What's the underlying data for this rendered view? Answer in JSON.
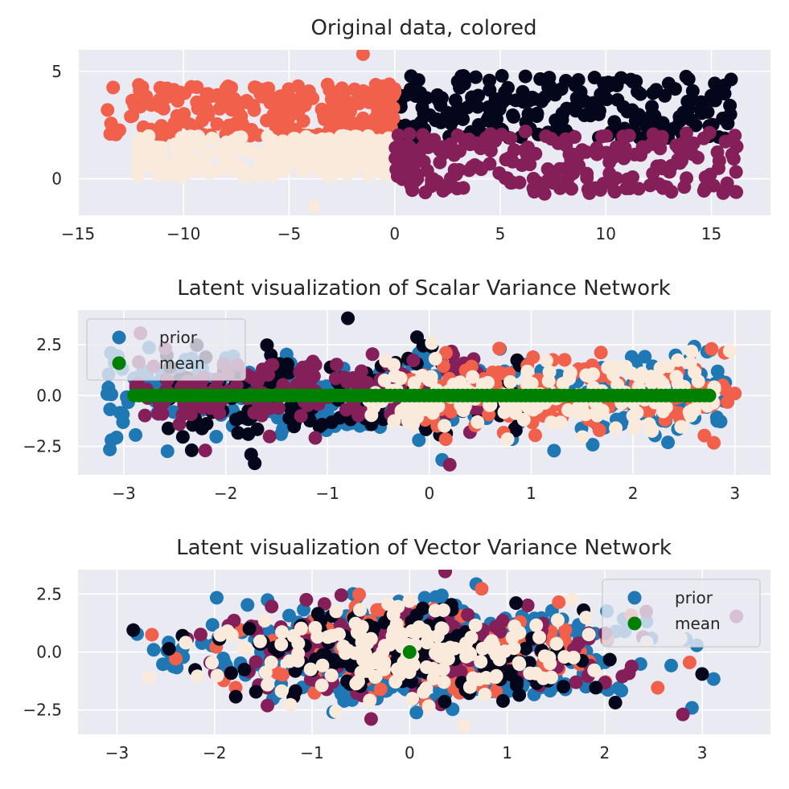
{
  "colors": {
    "black_cluster": "#04071c",
    "orange_cluster": "#f0604a",
    "cream_cluster": "#faeadc",
    "purple_cluster": "#841f5a",
    "prior": "#1f77b4",
    "mean": "#008000",
    "panel_background": "#eaeaf2"
  },
  "chart_data": [
    {
      "type": "scatter",
      "title": "Original data, colored",
      "xlim": [
        -15,
        17.8
      ],
      "ylim": [
        -1.7,
        6.0
      ],
      "xticks": [
        -15,
        -10,
        -5,
        0,
        5,
        10,
        15
      ],
      "xtick_labels": [
        "−15",
        "−10",
        "−5",
        "0",
        "5",
        "10",
        "15"
      ],
      "yticks": [
        0,
        5
      ],
      "ytick_labels": [
        "0",
        "5"
      ],
      "grid": true,
      "legend": null,
      "clusters": [
        {
          "color_key": "black_cluster",
          "x_range": [
            0,
            16
          ],
          "y_range": [
            1.8,
            4.8
          ],
          "count": 230,
          "seed": 11,
          "extra_points": [
            [
              15,
              3.7
            ],
            [
              15.9,
              3.0
            ],
            [
              8.7,
              4.6
            ],
            [
              12.7,
              2.6
            ]
          ]
        },
        {
          "color_key": "orange_cluster",
          "x_range": [
            -13.5,
            0
          ],
          "y_range": [
            1.9,
            4.4
          ],
          "count": 230,
          "seed": 23,
          "extra_points": [
            [
              -1.5,
              5.8
            ],
            [
              -13.6,
              3.2
            ],
            [
              -12.5,
              2.9
            ],
            [
              -11.9,
              2.4
            ]
          ]
        },
        {
          "color_key": "cream_cluster",
          "x_range": [
            -12.5,
            0
          ],
          "y_range": [
            0.1,
            2.0
          ],
          "count": 230,
          "seed": 37,
          "extra_points": [
            [
              -3.8,
              -1.3
            ],
            [
              -12.2,
              1.2
            ],
            [
              -11,
              0.95
            ]
          ]
        },
        {
          "color_key": "purple_cluster",
          "x_range": [
            0,
            16.2
          ],
          "y_range": [
            -0.7,
            2.2
          ],
          "count": 230,
          "seed": 53,
          "extra_points": [
            [
              16.2,
              1.5
            ],
            [
              7.1,
              -0.7
            ],
            [
              12.6,
              0.6
            ]
          ]
        }
      ]
    },
    {
      "type": "scatter",
      "title": "Latent visualization of Scalar Variance Network",
      "xlim": [
        -3.45,
        3.35
      ],
      "ylim": [
        -3.9,
        4.2
      ],
      "xticks": [
        -3,
        -2,
        -1,
        0,
        1,
        2,
        3
      ],
      "xtick_labels": [
        "−3",
        "−2",
        "−1",
        "0",
        "1",
        "2",
        "3"
      ],
      "yticks": [
        -2.5,
        0,
        2.5
      ],
      "ytick_labels": [
        "−2.5",
        "0.0",
        "2.5"
      ],
      "grid": true,
      "legend": {
        "position": "upper left",
        "entries": [
          {
            "label": "prior",
            "color_key": "prior"
          },
          {
            "label": "mean",
            "color_key": "mean"
          }
        ]
      },
      "prior": {
        "x_range": [
          -3.2,
          2.95
        ],
        "y_sd": 1.0,
        "count": 420,
        "seed": 71
      },
      "clusters": [
        {
          "color_key": "black_cluster",
          "x_range": [
            -2.6,
            0.9
          ],
          "y_sd": 1.0,
          "count": 190,
          "seed": 83,
          "extra_points": [
            [
              -0.8,
              3.8
            ],
            [
              -1.75,
              -2.9
            ]
          ]
        },
        {
          "color_key": "purple_cluster",
          "x_range": [
            -2.9,
            0.5
          ],
          "y_sd": 1.0,
          "count": 190,
          "seed": 97,
          "extra_points": [
            [
              0.2,
              -3.4
            ],
            [
              -2.2,
              -2.7
            ]
          ]
        },
        {
          "color_key": "orange_cluster",
          "x_range": [
            -0.2,
            3.0
          ],
          "y_sd": 0.9,
          "count": 170,
          "seed": 101,
          "extra_points": [
            [
              3.0,
              0.1
            ],
            [
              2.9,
              2.1
            ]
          ]
        },
        {
          "color_key": "cream_cluster",
          "x_range": [
            -0.6,
            2.8
          ],
          "y_sd": 0.9,
          "count": 170,
          "seed": 113,
          "extra_points": [
            [
              2.95,
              2.2
            ]
          ]
        }
      ],
      "mean": {
        "x_range": [
          -2.9,
          2.75
        ],
        "y": 0.0,
        "count": 120
      }
    },
    {
      "type": "scatter",
      "title": "Latent visualization of Vector Variance Network",
      "xlim": [
        -3.4,
        3.7
      ],
      "ylim": [
        -3.55,
        3.55
      ],
      "xticks": [
        -3,
        -2,
        -1,
        0,
        1,
        2,
        3
      ],
      "xtick_labels": [
        "−3",
        "−2",
        "−1",
        "0",
        "1",
        "2",
        "3"
      ],
      "yticks": [
        -2.5,
        0,
        2.5
      ],
      "ytick_labels": [
        "−2.5",
        "0.0",
        "2.5"
      ],
      "grid": true,
      "legend": {
        "position": "upper right",
        "entries": [
          {
            "label": "prior",
            "color_key": "prior"
          },
          {
            "label": "mean",
            "color_key": "mean"
          }
        ]
      },
      "prior": {
        "x_sd": 1.05,
        "y_sd": 1.0,
        "count": 480,
        "seed": 131
      },
      "clusters": [
        {
          "color_key": "orange_cluster",
          "x_sd": 1.0,
          "y_sd": 0.95,
          "count": 170,
          "seed": 149
        },
        {
          "color_key": "purple_cluster",
          "x_sd": 1.0,
          "y_sd": 0.95,
          "count": 170,
          "seed": 157
        },
        {
          "color_key": "black_cluster",
          "x_sd": 1.0,
          "y_sd": 0.95,
          "count": 170,
          "seed": 163
        },
        {
          "color_key": "cream_cluster",
          "x_sd": 1.0,
          "y_sd": 0.95,
          "count": 170,
          "seed": 173
        }
      ],
      "mean": {
        "points": [
          [
            0.0,
            0.0
          ]
        ]
      }
    }
  ]
}
